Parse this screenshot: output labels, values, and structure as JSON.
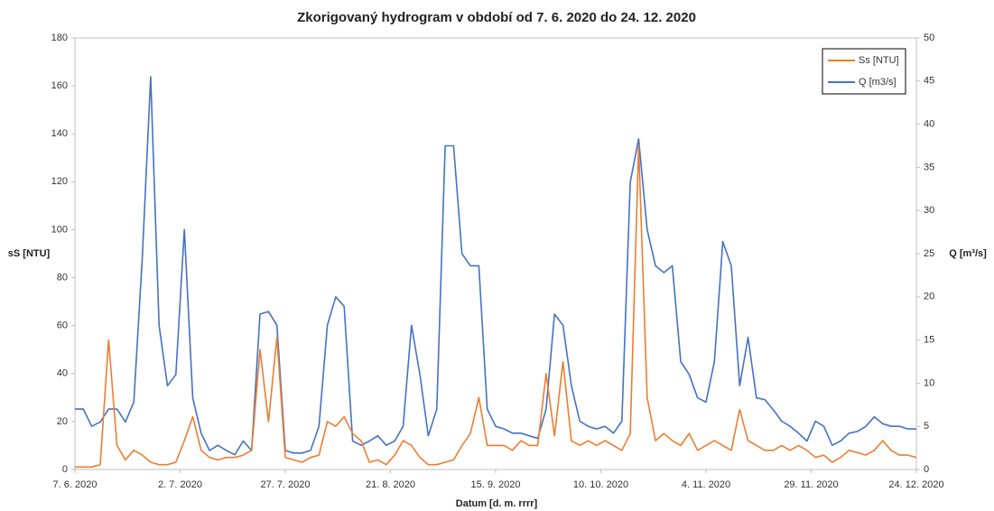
{
  "chart_data": {
    "type": "line",
    "title": "Zkorigovaný hydrogram v období od 7. 6. 2020 do 24. 12. 2020",
    "x_label": "Datum [d. m. rrrr]",
    "y_label": "sS [NTU]",
    "y2_label": "Q [m³/s]",
    "legend": "top-right",
    "x": [
      "2020-06-07",
      "2020-06-09",
      "2020-06-11",
      "2020-06-13",
      "2020-06-15",
      "2020-06-17",
      "2020-06-19",
      "2020-06-21",
      "2020-06-23",
      "2020-06-25",
      "2020-06-27",
      "2020-06-29",
      "2020-07-01",
      "2020-07-03",
      "2020-07-05",
      "2020-07-07",
      "2020-07-09",
      "2020-07-11",
      "2020-07-13",
      "2020-07-15",
      "2020-07-17",
      "2020-07-19",
      "2020-07-21",
      "2020-07-23",
      "2020-07-25",
      "2020-07-27",
      "2020-07-29",
      "2020-07-31",
      "2020-08-02",
      "2020-08-04",
      "2020-08-06",
      "2020-08-08",
      "2020-08-10",
      "2020-08-12",
      "2020-08-14",
      "2020-08-16",
      "2020-08-18",
      "2020-08-20",
      "2020-08-22",
      "2020-08-24",
      "2020-08-26",
      "2020-08-28",
      "2020-08-30",
      "2020-09-01",
      "2020-09-03",
      "2020-09-05",
      "2020-09-07",
      "2020-09-09",
      "2020-09-11",
      "2020-09-13",
      "2020-09-15",
      "2020-09-17",
      "2020-09-19",
      "2020-09-21",
      "2020-09-23",
      "2020-09-25",
      "2020-09-27",
      "2020-09-29",
      "2020-10-01",
      "2020-10-03",
      "2020-10-05",
      "2020-10-07",
      "2020-10-09",
      "2020-10-11",
      "2020-10-13",
      "2020-10-15",
      "2020-10-17",
      "2020-10-19",
      "2020-10-21",
      "2020-10-23",
      "2020-10-25",
      "2020-10-27",
      "2020-10-29",
      "2020-10-31",
      "2020-11-02",
      "2020-11-04",
      "2020-11-06",
      "2020-11-08",
      "2020-11-10",
      "2020-11-12",
      "2020-11-14",
      "2020-11-16",
      "2020-11-18",
      "2020-11-20",
      "2020-11-22",
      "2020-11-24",
      "2020-11-26",
      "2020-11-28",
      "2020-11-30",
      "2020-12-02",
      "2020-12-04",
      "2020-12-06",
      "2020-12-08",
      "2020-12-10",
      "2020-12-12",
      "2020-12-14",
      "2020-12-16",
      "2020-12-18",
      "2020-12-20",
      "2020-12-22",
      "2020-12-24"
    ],
    "series": [
      {
        "name": "Ss [NTU]",
        "color": "#ed7d31",
        "axis": "y",
        "values": [
          1,
          1,
          1,
          2,
          54,
          10,
          4,
          8,
          6,
          3,
          2,
          2,
          3,
          12,
          22,
          8,
          5,
          4,
          5,
          5,
          6,
          8,
          50,
          20,
          55,
          5,
          4,
          3,
          5,
          6,
          20,
          18,
          22,
          15,
          12,
          3,
          4,
          2,
          6,
          12,
          10,
          5,
          2,
          2,
          3,
          4,
          10,
          15,
          30,
          10,
          10,
          10,
          8,
          12,
          10,
          10,
          40,
          14,
          45,
          12,
          10,
          12,
          10,
          12,
          10,
          8,
          15,
          135,
          30,
          12,
          15,
          12,
          10,
          15,
          8,
          10,
          12,
          10,
          8,
          25,
          12,
          10,
          8,
          8,
          10,
          8,
          10,
          8,
          5,
          6,
          3,
          5,
          8,
          7,
          6,
          8,
          12,
          8,
          6,
          6,
          5
        ]
      },
      {
        "name": "Q [m3/s]",
        "color": "#4472c4",
        "axis": "y2",
        "values": [
          7,
          7,
          5,
          5.5,
          7,
          7,
          5.5,
          7.8,
          24.5,
          45.5,
          16.7,
          9.7,
          11,
          27.8,
          8.3,
          4.2,
          2.2,
          2.8,
          2.2,
          1.7,
          3.3,
          2.2,
          18,
          18.3,
          16.7,
          2.2,
          1.9,
          1.9,
          2.2,
          5,
          16.7,
          20,
          18.9,
          3.3,
          2.8,
          3.3,
          3.9,
          2.8,
          3.3,
          5,
          16.7,
          11,
          3.9,
          7,
          37.5,
          37.5,
          25,
          23.6,
          23.6,
          7,
          5,
          4.7,
          4.2,
          4.2,
          3.9,
          3.6,
          7,
          18,
          16.7,
          9.7,
          5.6,
          5,
          4.7,
          5,
          4.2,
          5.6,
          33.3,
          38.3,
          27.8,
          23.6,
          22.8,
          23.6,
          12.5,
          11,
          8.3,
          7.8,
          12.5,
          26.4,
          23.6,
          9.7,
          15.3,
          8.3,
          8.1,
          6.9,
          5.6,
          5,
          4.2,
          3.3,
          5.6,
          5,
          2.8,
          3.3,
          4.2,
          4.4,
          5,
          6.1,
          5.3,
          5,
          5,
          4.7,
          4.7
        ]
      }
    ],
    "xlim": [
      "2020-06-07",
      "2020-12-24"
    ],
    "xticks": [
      {
        "value": "2020-06-07",
        "label": "7. 6. 2020"
      },
      {
        "value": "2020-07-02",
        "label": "2. 7. 2020"
      },
      {
        "value": "2020-07-27",
        "label": "27. 7. 2020"
      },
      {
        "value": "2020-08-21",
        "label": "21. 8. 2020"
      },
      {
        "value": "2020-09-15",
        "label": "15. 9. 2020"
      },
      {
        "value": "2020-10-10",
        "label": "10. 10. 2020"
      },
      {
        "value": "2020-11-04",
        "label": "4. 11. 2020"
      },
      {
        "value": "2020-11-29",
        "label": "29. 11. 2020"
      },
      {
        "value": "2020-12-24",
        "label": "24. 12. 2020"
      }
    ],
    "ylim": [
      0,
      180
    ],
    "yticks": [
      0,
      20,
      40,
      60,
      80,
      100,
      120,
      140,
      160,
      180
    ],
    "y2lim": [
      0,
      50
    ],
    "y2ticks": [
      0,
      5,
      10,
      15,
      20,
      25,
      30,
      35,
      40,
      45,
      50
    ]
  }
}
